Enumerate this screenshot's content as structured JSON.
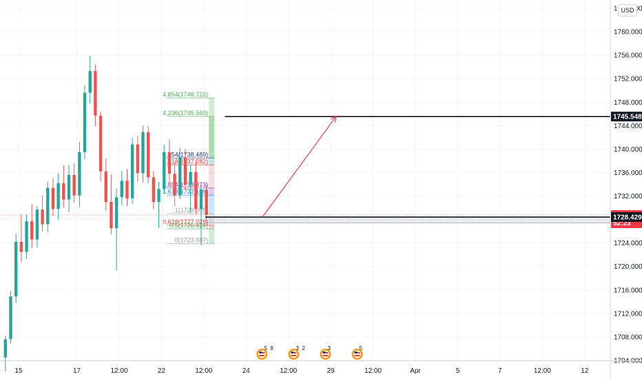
{
  "chart_data": {
    "type": "candlestick",
    "currency": "USD",
    "y_axis": {
      "min": 1704,
      "max": 1764,
      "ticks": [
        "1704.000",
        "1708.000",
        "1712.000",
        "1716.000",
        "1720.000",
        "1724.000",
        "1728.000",
        "1732.000",
        "1736.000",
        "1740.000",
        "1744.000",
        "1748.000",
        "1752.000",
        "1756.000",
        "1760.000",
        "1764.000"
      ]
    },
    "x_axis": {
      "ticks": [
        "15",
        "17",
        "12:00",
        "22",
        "12:00",
        "24",
        "12:00",
        "29",
        "12:00",
        "Apr",
        "5",
        "7",
        "12:00",
        "12"
      ],
      "tick_bars": [
        3,
        14,
        22,
        30,
        38,
        46,
        54,
        62,
        70,
        78,
        86,
        94,
        102,
        110
      ]
    },
    "price_tags": [
      {
        "label": "1745.548",
        "price": 1745.548,
        "style": "dark"
      },
      {
        "label": "1728.770",
        "price": 1728.77,
        "style": "red",
        "sub": "52:23"
      },
      {
        "label": "1728.429",
        "price": 1728.429,
        "style": "dark"
      }
    ],
    "horizontal_lines": [
      1745.548,
      1728.429
    ],
    "zone": {
      "top": 1728.429,
      "bottom": 1727.4
    },
    "current_price": 1728.77,
    "fib_levels": [
      {
        "label": "4.854(1748.722)",
        "price": 1748.722,
        "color": "#4caf50"
      },
      {
        "label": "4.236(1745.560)",
        "price": 1745.56,
        "color": "#4caf50"
      },
      {
        "label": "2.854(1738.489)",
        "price": 1738.489,
        "color": "#1e3a8a"
      },
      {
        "label": "2.618(1737.282)",
        "price": 1737.282,
        "color": "#e53935"
      },
      {
        "label": "1.854(1733.373)",
        "price": 1733.373,
        "color": "#9c27b0"
      },
      {
        "label": "1.618(1732.166)",
        "price": 1732.166,
        "color": "#1e88e5"
      },
      {
        "label": "1(1729.005)",
        "price": 1729.005,
        "color": "#9e9e9e"
      },
      {
        "label": "0.618(1727.028)",
        "price": 1727.028,
        "color": "#e53935"
      },
      {
        "label": "0.5(1726.424)",
        "price": 1726.424,
        "color": "#4caf50"
      },
      {
        "label": "0(1723.887)",
        "price": 1723.887,
        "color": "#9e9e9e"
      }
    ],
    "projection_arrow": {
      "from_bar": 50,
      "from_price": 1728.6,
      "to_bar": 62,
      "to_price": 1745.6
    },
    "events": [
      {
        "count": "5",
        "extra": "8",
        "bar": 49
      },
      {
        "count": "3",
        "extra": "2",
        "bar": 55
      },
      {
        "count": "3",
        "extra": "",
        "bar": 61
      },
      {
        "count": "5",
        "extra": "",
        "bar": 67
      }
    ],
    "candles": [
      [
        1704.5,
        1708.2,
        1702.1,
        1707.6
      ],
      [
        1707.6,
        1715.8,
        1706.9,
        1714.9
      ],
      [
        1714.9,
        1725.6,
        1713.8,
        1724.2
      ],
      [
        1724.2,
        1728.9,
        1720.7,
        1722.5
      ],
      [
        1722.5,
        1728.8,
        1721.3,
        1727.7
      ],
      [
        1727.7,
        1730.6,
        1723.1,
        1724.6
      ],
      [
        1724.6,
        1730.3,
        1723.2,
        1729.7
      ],
      [
        1729.7,
        1732.1,
        1726.0,
        1727.2
      ],
      [
        1727.2,
        1734.5,
        1725.8,
        1733.4
      ],
      [
        1733.4,
        1735.0,
        1728.6,
        1729.8
      ],
      [
        1729.8,
        1735.9,
        1728.0,
        1734.2
      ],
      [
        1734.2,
        1737.3,
        1730.0,
        1731.4
      ],
      [
        1731.4,
        1737.3,
        1729.2,
        1735.6
      ],
      [
        1735.6,
        1737.6,
        1730.9,
        1732.1
      ],
      [
        1732.1,
        1741.2,
        1730.1,
        1739.5
      ],
      [
        1739.5,
        1750.9,
        1738.3,
        1749.6
      ],
      [
        1749.6,
        1755.9,
        1747.8,
        1753.3
      ],
      [
        1753.3,
        1754.4,
        1743.9,
        1745.7
      ],
      [
        1745.7,
        1746.4,
        1734.5,
        1736.2
      ],
      [
        1736.2,
        1738.4,
        1729.5,
        1731.0
      ],
      [
        1731.0,
        1735.7,
        1725.5,
        1726.5
      ],
      [
        1726.5,
        1733.3,
        1719.3,
        1731.8
      ],
      [
        1731.8,
        1736.3,
        1730.4,
        1734.6
      ],
      [
        1734.6,
        1736.6,
        1730.3,
        1731.6
      ],
      [
        1731.6,
        1741.9,
        1730.7,
        1740.8
      ],
      [
        1740.8,
        1742.2,
        1734.4,
        1735.9
      ],
      [
        1735.9,
        1744.0,
        1734.3,
        1742.9
      ],
      [
        1742.9,
        1743.9,
        1734.2,
        1735.2
      ],
      [
        1735.2,
        1736.3,
        1729.8,
        1731.0
      ],
      [
        1731.0,
        1734.4,
        1726.6,
        1733.2
      ],
      [
        1733.2,
        1740.8,
        1732.5,
        1739.5
      ],
      [
        1739.5,
        1741.6,
        1734.3,
        1735.8
      ],
      [
        1735.8,
        1737.7,
        1730.3,
        1732.1
      ],
      [
        1732.1,
        1740.2,
        1731.5,
        1738.6
      ],
      [
        1738.6,
        1740.0,
        1733.0,
        1733.9
      ],
      [
        1733.9,
        1737.4,
        1729.2,
        1736.1
      ],
      [
        1736.1,
        1738.2,
        1728.9,
        1729.8
      ],
      [
        1729.8,
        1734.2,
        1723.6,
        1733.1
      ],
      [
        1733.1,
        1733.9,
        1728.0,
        1728.8
      ]
    ]
  }
}
